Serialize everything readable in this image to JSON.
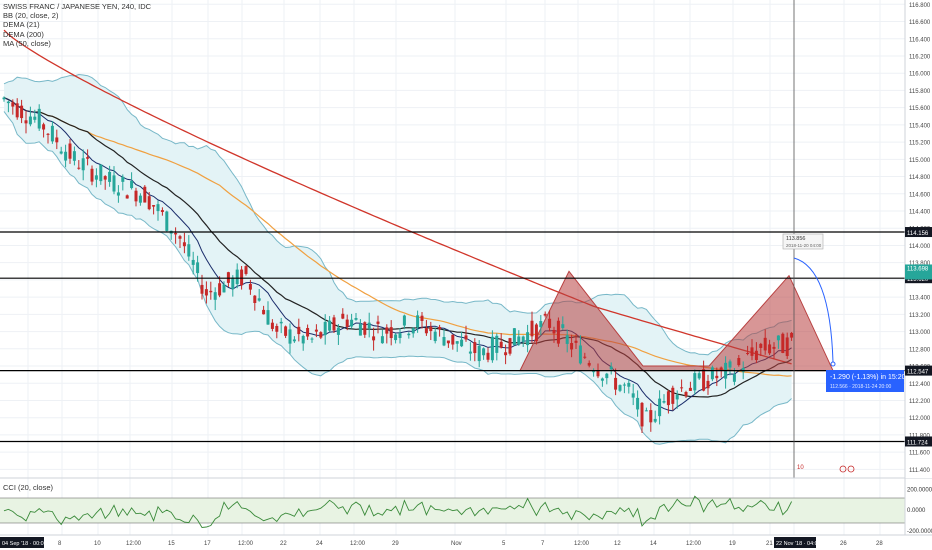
{
  "legend": {
    "title": "SWISS FRANC / JAPANESE YEN, 240, IDC",
    "bb": "BB (20, close, 2)",
    "dema21": "DEMA (21)",
    "dema200": "DEMA (200)",
    "ma50": "MA (50, close)"
  },
  "cci": {
    "label": "CCI (20, close)",
    "ticks": [
      "200.0000",
      "0.0000",
      "-200.0000"
    ]
  },
  "colors": {
    "up": "#26a69a",
    "down": "#c62828",
    "bb_band": "#78b8c8",
    "bb_fill": "#e3f3f6",
    "dema21": "#1a2c6a",
    "dema200": "#d0352a",
    "ma50": "#f0a040",
    "ma_black": "#222222",
    "pattern": "#b84040",
    "projection": "#2962ff",
    "cci_line": "#3a8a3a",
    "cci_fill": "#e8f3e3"
  },
  "price_labels": {
    "crosshair_price": "113.856",
    "crosshair_date": "2018-11-20 04:00",
    "last_green": "113.698",
    "last_green_sub": "113.7 MA",
    "level_top": "114.156",
    "level_upper": "113.620",
    "level_lower": "112.547",
    "level_bottom": "111.724"
  },
  "projection_box": {
    "line1": "-1.290 (-1.13%) in 15:20h",
    "line2": "112.566 · 2018-11-24 20:00"
  },
  "time_label_current": "22 Nov '18  04:00",
  "event_markers": [
    "10",
    "0"
  ],
  "chart_data": {
    "type": "candlestick",
    "title": "SWISS FRANC / JAPANESE YEN, 240, IDC",
    "y_axis_range": [
      111.3,
      116.85
    ],
    "y_ticks": [
      "116.800",
      "116.600",
      "116.400",
      "116.200",
      "116.000",
      "115.800",
      "115.600",
      "115.400",
      "115.200",
      "115.000",
      "114.800",
      "114.600",
      "114.400",
      "114.200",
      "114.000",
      "113.800",
      "113.600",
      "113.400",
      "113.200",
      "113.000",
      "112.800",
      "112.600",
      "112.400",
      "112.200",
      "112.000",
      "111.800",
      "111.600",
      "111.400"
    ],
    "x_ticks": [
      "04 Sep '18 · 00:00",
      "8",
      "10",
      "12:00",
      "15",
      "17",
      "12:00",
      "22",
      "24",
      "12:00",
      "29",
      "Nov",
      "5",
      "7",
      "12:00",
      "12",
      "14",
      "12:00",
      "19",
      "21",
      "22 Nov '18 · 04:00",
      "26",
      "28"
    ],
    "horizontal_levels": [
      114.156,
      113.62,
      112.547,
      111.724
    ],
    "candle_count": 180,
    "path": [
      [
        0,
        115.7
      ],
      [
        8,
        115.45
      ],
      [
        16,
        115.0
      ],
      [
        24,
        114.75
      ],
      [
        32,
        114.6
      ],
      [
        40,
        114.1
      ],
      [
        46,
        113.45
      ],
      [
        55,
        113.65
      ],
      [
        62,
        113.0
      ],
      [
        70,
        112.9
      ],
      [
        78,
        113.15
      ],
      [
        86,
        113.0
      ],
      [
        94,
        113.1
      ],
      [
        100,
        112.95
      ],
      [
        108,
        112.75
      ],
      [
        116,
        112.9
      ],
      [
        124,
        113.1
      ],
      [
        130,
        112.8
      ],
      [
        136,
        112.55
      ],
      [
        142,
        112.3
      ],
      [
        146,
        111.95
      ],
      [
        152,
        112.3
      ],
      [
        160,
        112.45
      ],
      [
        166,
        112.55
      ],
      [
        172,
        112.8
      ],
      [
        178,
        112.85
      ],
      [
        184,
        112.9
      ],
      [
        190,
        113.3
      ],
      [
        196,
        113.7
      ],
      [
        202,
        113.55
      ],
      [
        208,
        113.0
      ],
      [
        214,
        112.7
      ],
      [
        220,
        112.75
      ],
      [
        226,
        112.65
      ],
      [
        232,
        112.9
      ],
      [
        238,
        113.35
      ],
      [
        242,
        113.56
      ]
    ],
    "pattern": {
      "type": "triangle",
      "points": [
        [
          520,
          112.547
        ],
        [
          569,
          113.7
        ],
        [
          643,
          112.6
        ],
        [
          709,
          112.6
        ],
        [
          789,
          113.65
        ],
        [
          833,
          112.547
        ]
      ]
    },
    "projection": {
      "change": "-1.290 (-1.13%)",
      "target": 112.566
    },
    "cci_range": [
      -250,
      280
    ]
  }
}
